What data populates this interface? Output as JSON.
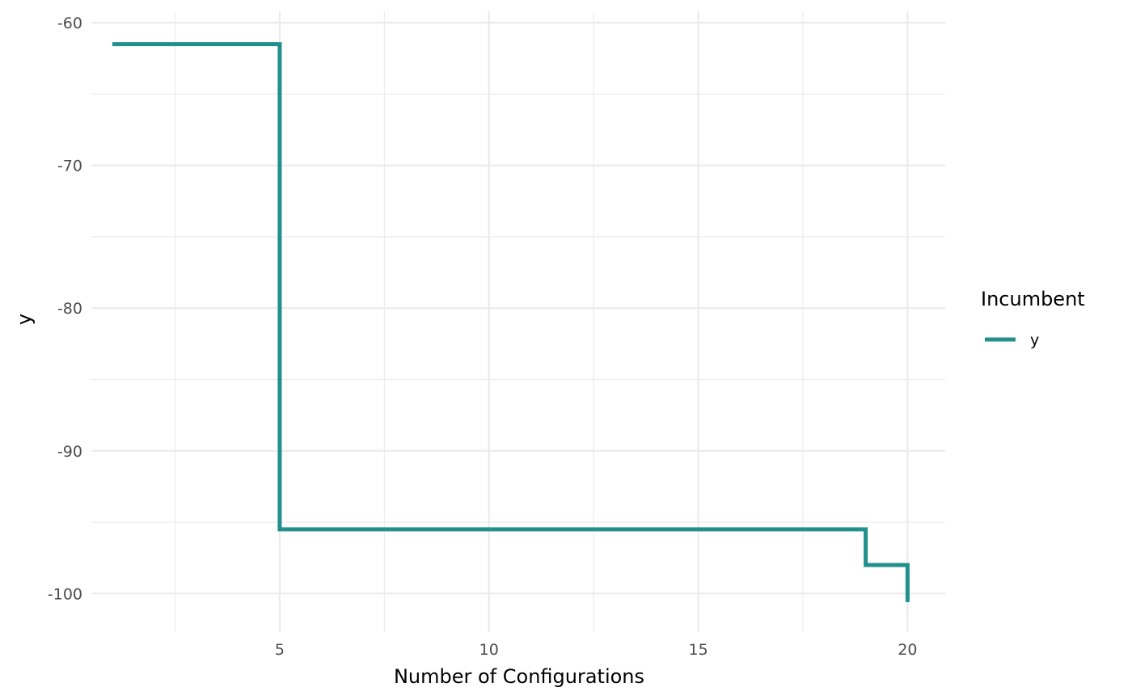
{
  "chart_data": {
    "type": "line",
    "step": true,
    "xlabel": "Number of Configurations",
    "ylabel": "y",
    "xlim": [
      0.5,
      20.9
    ],
    "ylim": [
      -102.7,
      -59.2
    ],
    "x_ticks": [
      5,
      10,
      15,
      20
    ],
    "x_tick_labels": [
      "5",
      "10",
      "15",
      "20"
    ],
    "y_ticks": [
      -60,
      -70,
      -80,
      -90,
      -100
    ],
    "y_tick_labels": [
      "-60",
      "-70",
      "-80",
      "-90",
      "-100"
    ],
    "x_minor_ticks": [
      2.5,
      7.5,
      12.5,
      17.5
    ],
    "y_minor_ticks": [
      -65,
      -75,
      -85,
      -95
    ],
    "grid": true,
    "theme": "minimal",
    "legend": {
      "title": "Incumbent",
      "position": "right",
      "entries": [
        {
          "label": "y",
          "color": "#21908C"
        }
      ]
    },
    "series": [
      {
        "name": "y",
        "color": "#21908C",
        "x": [
          1,
          5,
          5,
          19,
          19,
          20,
          20
        ],
        "y": [
          -61.5,
          -61.5,
          -95.5,
          -95.5,
          -98,
          -98,
          -100.6
        ]
      }
    ]
  }
}
